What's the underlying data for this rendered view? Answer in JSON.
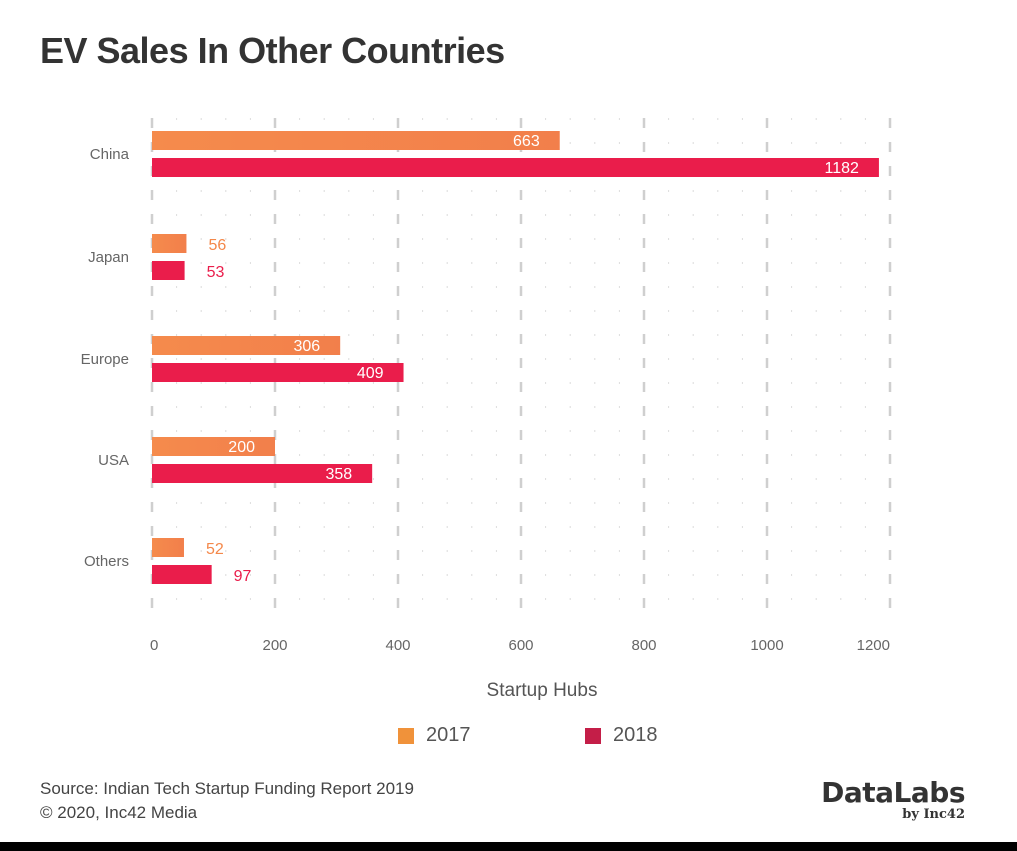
{
  "chart_data": {
    "type": "bar",
    "orientation": "horizontal",
    "title": "EV Sales In Other Countries",
    "xlabel": "Startup Hubs",
    "ylabel": "",
    "categories": [
      "China",
      "Japan",
      "Europe",
      "USA",
      "Others"
    ],
    "series": [
      {
        "name": "2017",
        "values": [
          663,
          56,
          306,
          200,
          52
        ],
        "color": "#f4884a"
      },
      {
        "name": "2018",
        "values": [
          1182,
          53,
          409,
          358,
          97
        ],
        "color": "#ea1d4b"
      }
    ],
    "xlim": [
      0,
      1200
    ],
    "xticks": [
      0,
      200,
      400,
      600,
      800,
      1000,
      1200
    ],
    "grid": true,
    "legend_position": "bottom-center"
  },
  "legend": {
    "items": [
      {
        "label": "2017",
        "color": "#f0923a"
      },
      {
        "label": "2018",
        "color": "#c41e48"
      }
    ]
  },
  "footer": {
    "source": "Source: Indian Tech Startup Funding Report 2019",
    "copyright": "© 2020, Inc42 Media"
  },
  "brand": {
    "name": "DataLabs",
    "by": "by Inc42"
  }
}
